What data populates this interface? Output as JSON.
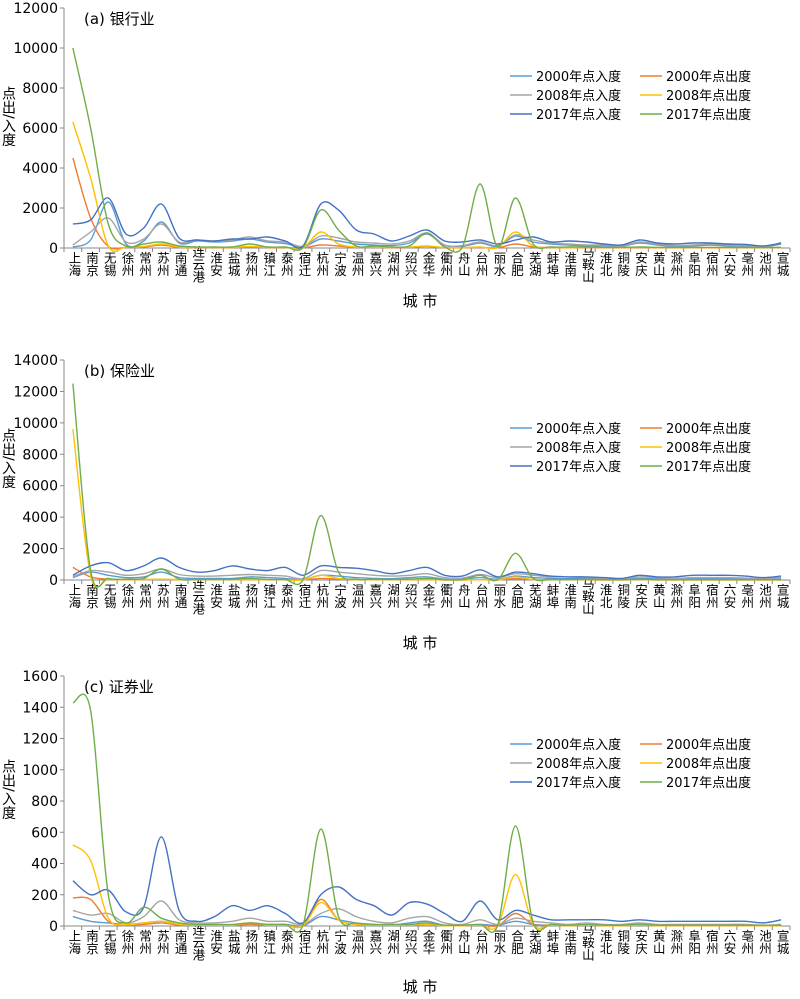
{
  "chart_data": [
    {
      "type": "line",
      "title": "(a) 银行业",
      "xlabel": "城 市",
      "ylabel": "点出/入度",
      "ylim": [
        0,
        12000
      ],
      "yticks": [
        0,
        2000,
        4000,
        6000,
        8000,
        10000,
        12000
      ],
      "grid": false,
      "legend_position": "right",
      "categories": [
        "上海",
        "南京",
        "无锡",
        "徐州",
        "常州",
        "苏州",
        "南通",
        "连云港",
        "淮安",
        "盐城",
        "扬州",
        "镇江",
        "泰州",
        "宿迁",
        "杭州",
        "宁波",
        "温州",
        "嘉兴",
        "湖州",
        "绍兴",
        "金华",
        "衢州",
        "舟山",
        "台州",
        "丽水",
        "合肥",
        "芜湖",
        "蚌埠",
        "淮南",
        "马鞍山",
        "淮北",
        "铜陵",
        "安庆",
        "黄山",
        "滁州",
        "阜阳",
        "宿州",
        "六安",
        "亳州",
        "池州",
        "宣城"
      ],
      "series": [
        {
          "name": "2000年点入度",
          "color": "#5B9BD5",
          "values": [
            50,
            400,
            2300,
            200,
            350,
            1300,
            250,
            350,
            300,
            350,
            450,
            300,
            220,
            60,
            450,
            350,
            200,
            150,
            120,
            250,
            700,
            130,
            80,
            250,
            80,
            600,
            300,
            200,
            150,
            100,
            100,
            80,
            250,
            150,
            80,
            100,
            150,
            100,
            80,
            50,
            200
          ]
        },
        {
          "name": "2000年点出度",
          "color": "#ED7D31",
          "values": [
            4500,
            1500,
            80,
            30,
            50,
            150,
            30,
            20,
            20,
            20,
            50,
            20,
            20,
            10,
            150,
            100,
            30,
            30,
            20,
            30,
            80,
            10,
            10,
            30,
            10,
            200,
            50,
            20,
            10,
            20,
            10,
            10,
            20,
            10,
            10,
            10,
            10,
            10,
            10,
            10,
            10
          ]
        },
        {
          "name": "2008年点入度",
          "color": "#A5A5A5",
          "values": [
            150,
            800,
            1500,
            300,
            450,
            1200,
            300,
            400,
            350,
            400,
            550,
            350,
            300,
            80,
            600,
            500,
            300,
            250,
            200,
            350,
            750,
            150,
            120,
            300,
            120,
            650,
            400,
            250,
            200,
            150,
            150,
            100,
            300,
            200,
            120,
            150,
            200,
            150,
            120,
            80,
            250
          ]
        },
        {
          "name": "2008年点出度",
          "color": "#FFC000",
          "values": [
            6300,
            3500,
            100,
            50,
            80,
            200,
            50,
            30,
            30,
            30,
            80,
            30,
            30,
            10,
            800,
            200,
            50,
            50,
            30,
            50,
            100,
            20,
            20,
            50,
            20,
            800,
            100,
            30,
            20,
            30,
            20,
            20,
            30,
            20,
            20,
            20,
            20,
            20,
            20,
            20,
            20
          ]
        },
        {
          "name": "2017年点入度",
          "color": "#4472C4",
          "values": [
            1200,
            1400,
            2500,
            700,
            1000,
            2200,
            500,
            400,
            350,
            450,
            450,
            550,
            350,
            100,
            2200,
            1900,
            900,
            700,
            350,
            600,
            900,
            350,
            300,
            400,
            200,
            400,
            550,
            300,
            350,
            300,
            200,
            150,
            400,
            250,
            200,
            250,
            250,
            200,
            180,
            100,
            250
          ]
        },
        {
          "name": "2017年点出度",
          "color": "#70AD47",
          "values": [
            10000,
            6000,
            1200,
            100,
            200,
            300,
            100,
            50,
            50,
            50,
            200,
            50,
            50,
            20,
            1900,
            900,
            100,
            100,
            50,
            100,
            750,
            50,
            50,
            3200,
            50,
            2500,
            200,
            50,
            50,
            50,
            30,
            30,
            50,
            30,
            30,
            30,
            30,
            30,
            30,
            20,
            30
          ]
        }
      ]
    },
    {
      "type": "line",
      "title": "(b) 保险业",
      "xlabel": "城 市",
      "ylabel": "点出/入度",
      "ylim": [
        0,
        14000
      ],
      "yticks": [
        0,
        2000,
        4000,
        6000,
        8000,
        10000,
        12000,
        14000
      ],
      "grid": false,
      "legend_position": "right",
      "categories": [
        "上海",
        "南京",
        "无锡",
        "徐州",
        "常州",
        "苏州",
        "南通",
        "连云港",
        "淮安",
        "盐城",
        "扬州",
        "镇江",
        "泰州",
        "宿迁",
        "杭州",
        "宁波",
        "温州",
        "嘉兴",
        "湖州",
        "绍兴",
        "金华",
        "衢州",
        "舟山",
        "台州",
        "丽水",
        "合肥",
        "芜湖",
        "蚌埠",
        "淮南",
        "马鞍山",
        "淮北",
        "铜陵",
        "安庆",
        "黄山",
        "滁州",
        "阜阳",
        "宿州",
        "六安",
        "亳州",
        "池州",
        "宣城"
      ],
      "series": [
        {
          "name": "2000年点入度",
          "color": "#5B9BD5",
          "values": [
            150,
            500,
            300,
            150,
            200,
            500,
            150,
            100,
            100,
            100,
            200,
            150,
            100,
            30,
            300,
            250,
            150,
            100,
            80,
            150,
            200,
            50,
            50,
            150,
            50,
            250,
            150,
            100,
            80,
            80,
            50,
            50,
            100,
            80,
            50,
            80,
            80,
            80,
            50,
            30,
            80
          ]
        },
        {
          "name": "2000年点出度",
          "color": "#ED7D31",
          "values": [
            800,
            200,
            50,
            20,
            30,
            50,
            20,
            10,
            10,
            10,
            30,
            10,
            10,
            5,
            100,
            50,
            20,
            20,
            10,
            20,
            30,
            5,
            5,
            20,
            5,
            80,
            30,
            10,
            10,
            10,
            5,
            5,
            10,
            5,
            5,
            5,
            5,
            5,
            5,
            5,
            5
          ]
        },
        {
          "name": "2008年点入度",
          "color": "#A5A5A5",
          "values": [
            200,
            600,
            500,
            300,
            400,
            700,
            350,
            250,
            250,
            300,
            350,
            300,
            250,
            80,
            600,
            500,
            400,
            300,
            250,
            300,
            400,
            150,
            120,
            350,
            150,
            400,
            300,
            200,
            200,
            150,
            100,
            80,
            200,
            150,
            100,
            150,
            150,
            150,
            120,
            80,
            150
          ]
        },
        {
          "name": "2008年点出度",
          "color": "#FFC000",
          "values": [
            9600,
            300,
            50,
            20,
            30,
            50,
            20,
            10,
            10,
            10,
            30,
            10,
            10,
            5,
            300,
            100,
            20,
            20,
            10,
            20,
            30,
            5,
            5,
            20,
            5,
            200,
            30,
            10,
            10,
            10,
            5,
            5,
            10,
            5,
            5,
            5,
            5,
            5,
            5,
            5,
            5
          ]
        },
        {
          "name": "2017年点入度",
          "color": "#4472C4",
          "values": [
            300,
            900,
            1100,
            600,
            900,
            1400,
            800,
            500,
            600,
            900,
            700,
            600,
            800,
            300,
            900,
            800,
            750,
            600,
            400,
            600,
            800,
            300,
            250,
            650,
            200,
            500,
            400,
            250,
            200,
            200,
            150,
            100,
            300,
            200,
            200,
            300,
            300,
            300,
            250,
            150,
            250
          ]
        },
        {
          "name": "2017年点出度",
          "color": "#70AD47",
          "values": [
            12500,
            600,
            100,
            50,
            100,
            700,
            50,
            30,
            30,
            30,
            100,
            30,
            30,
            10,
            4100,
            500,
            50,
            50,
            30,
            50,
            100,
            20,
            20,
            300,
            20,
            1700,
            100,
            30,
            20,
            30,
            20,
            20,
            30,
            20,
            20,
            20,
            20,
            20,
            20,
            20,
            20
          ]
        }
      ]
    },
    {
      "type": "line",
      "title": "(c) 证券业",
      "xlabel": "城 市",
      "ylabel": "点出/入度",
      "ylim": [
        0,
        1600
      ],
      "yticks": [
        0,
        200,
        400,
        600,
        800,
        1000,
        1200,
        1400,
        1600
      ],
      "grid": false,
      "legend_position": "right",
      "categories": [
        "上海",
        "南京",
        "无锡",
        "徐州",
        "常州",
        "苏州",
        "南通",
        "连云港",
        "淮安",
        "盐城",
        "扬州",
        "镇江",
        "泰州",
        "宿迁",
        "杭州",
        "宁波",
        "温州",
        "嘉兴",
        "湖州",
        "绍兴",
        "金华",
        "衢州",
        "舟山",
        "台州",
        "丽水",
        "合肥",
        "芜湖",
        "蚌埠",
        "淮南",
        "马鞍山",
        "淮北",
        "铜陵",
        "安庆",
        "黄山",
        "滁州",
        "阜阳",
        "宿州",
        "六安",
        "亳州",
        "池州",
        "宣城"
      ],
      "series": [
        {
          "name": "2000年点入度",
          "color": "#5B9BD5",
          "values": [
            60,
            30,
            20,
            10,
            20,
            30,
            10,
            5,
            5,
            5,
            20,
            10,
            10,
            2,
            60,
            40,
            20,
            10,
            5,
            20,
            30,
            5,
            5,
            10,
            5,
            30,
            10,
            5,
            5,
            5,
            5,
            5,
            10,
            5,
            5,
            5,
            5,
            5,
            5,
            2,
            5
          ]
        },
        {
          "name": "2000年点出度",
          "color": "#ED7D31",
          "values": [
            180,
            170,
            30,
            10,
            10,
            20,
            5,
            5,
            5,
            5,
            10,
            5,
            5,
            2,
            170,
            40,
            10,
            5,
            5,
            5,
            10,
            2,
            2,
            5,
            2,
            80,
            10,
            5,
            2,
            5,
            2,
            2,
            5,
            2,
            2,
            2,
            2,
            2,
            2,
            2,
            2
          ]
        },
        {
          "name": "2008年点入度",
          "color": "#A5A5A5",
          "values": [
            100,
            70,
            80,
            20,
            60,
            160,
            40,
            20,
            20,
            30,
            50,
            30,
            30,
            10,
            80,
            110,
            60,
            30,
            20,
            50,
            60,
            20,
            10,
            40,
            10,
            50,
            30,
            20,
            10,
            20,
            10,
            10,
            20,
            10,
            10,
            10,
            10,
            10,
            10,
            5,
            10
          ]
        },
        {
          "name": "2008年点出度",
          "color": "#FFC000",
          "values": [
            520,
            420,
            50,
            10,
            20,
            30,
            10,
            5,
            5,
            5,
            20,
            5,
            5,
            2,
            150,
            40,
            10,
            5,
            5,
            5,
            10,
            2,
            2,
            5,
            2,
            330,
            10,
            5,
            2,
            5,
            2,
            2,
            5,
            2,
            2,
            2,
            2,
            2,
            2,
            2,
            2
          ]
        },
        {
          "name": "2017年点入度",
          "color": "#4472C4",
          "values": [
            290,
            200,
            230,
            90,
            120,
            570,
            100,
            30,
            60,
            130,
            100,
            130,
            80,
            20,
            200,
            250,
            170,
            130,
            70,
            150,
            140,
            80,
            30,
            160,
            40,
            100,
            70,
            40,
            40,
            40,
            40,
            30,
            40,
            30,
            30,
            30,
            30,
            30,
            30,
            20,
            40
          ]
        },
        {
          "name": "2017年点出度",
          "color": "#70AD47",
          "values": [
            1430,
            1380,
            200,
            20,
            120,
            50,
            20,
            10,
            10,
            10,
            20,
            10,
            10,
            5,
            620,
            60,
            20,
            10,
            10,
            10,
            20,
            5,
            5,
            10,
            5,
            640,
            20,
            10,
            5,
            10,
            5,
            5,
            10,
            5,
            5,
            5,
            5,
            5,
            5,
            5,
            5
          ]
        }
      ]
    }
  ]
}
